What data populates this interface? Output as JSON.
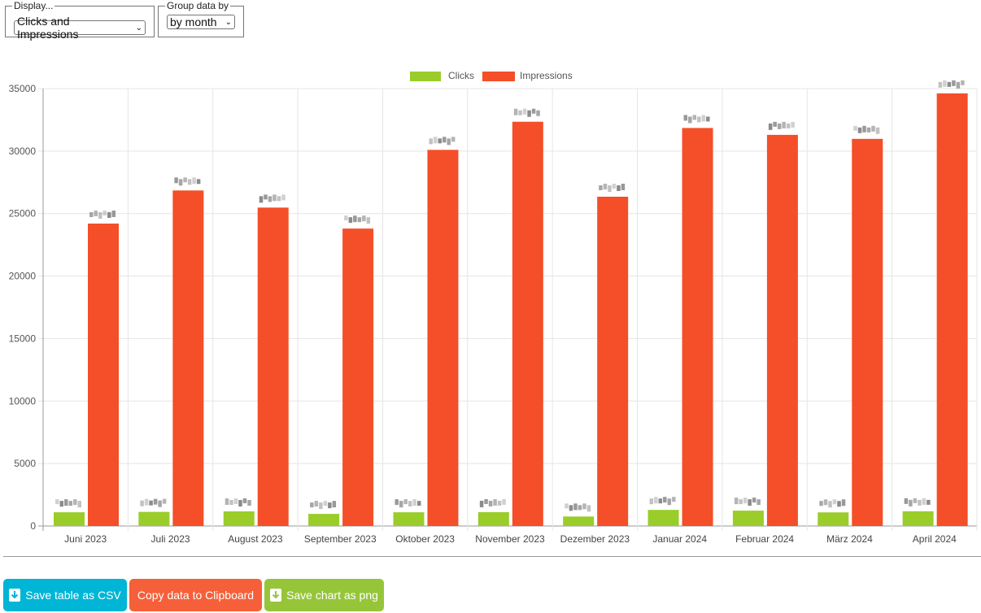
{
  "controls": {
    "display_legend": "Display...",
    "display_value": "Clicks and Impressions",
    "group_legend": "Group data by",
    "group_value": "by month"
  },
  "colors": {
    "clicks": "#9acd2a",
    "impressions": "#f44f28",
    "csv_button": "#00b5d6",
    "clipboard_button": "#f5603a",
    "png_button": "#96c53a"
  },
  "chart_data": {
    "type": "bar",
    "categories": [
      "Juni 2023",
      "Juli 2023",
      "August 2023",
      "September 2023",
      "Oktober 2023",
      "November 2023",
      "Dezember 2023",
      "Januar 2024",
      "Februar 2024",
      "März 2024",
      "April 2024"
    ],
    "series": [
      {
        "name": "Clicks",
        "values": [
          1100,
          1130,
          1170,
          970,
          1100,
          1110,
          760,
          1290,
          1230,
          1090,
          1180
        ]
      },
      {
        "name": "Impressions",
        "values": [
          24200,
          26850,
          25480,
          23800,
          30100,
          32350,
          26350,
          31850,
          31300,
          30980,
          34620
        ]
      }
    ],
    "ylim": [
      0,
      35000
    ],
    "yticks": [
      0,
      5000,
      10000,
      15000,
      20000,
      25000,
      30000,
      35000
    ],
    "legend": "top-center",
    "grid": true
  },
  "buttons": {
    "csv": "Save table as CSV",
    "clipboard": "Copy data to Clipboard",
    "png": "Save chart as png"
  }
}
